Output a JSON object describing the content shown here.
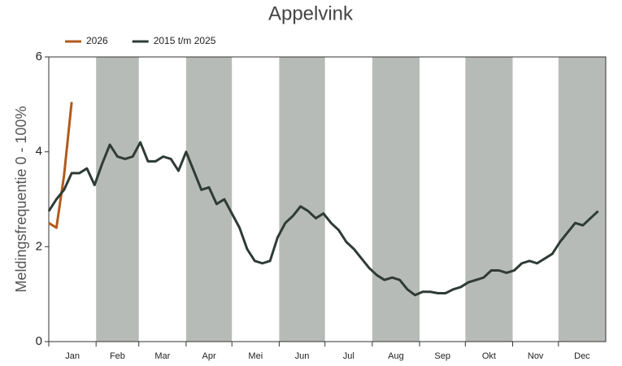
{
  "chart_data": {
    "type": "line",
    "title": "Appelvink",
    "y_label": "Meldingsfrequentie 0 - 100%",
    "x": [
      1,
      6,
      11,
      16,
      21,
      26,
      31,
      36,
      41,
      46,
      51,
      56,
      61,
      66,
      71,
      76,
      81,
      86,
      91,
      96,
      101,
      106,
      111,
      116,
      121,
      126,
      131,
      136,
      141,
      146,
      151,
      156,
      161,
      166,
      171,
      176,
      181,
      186,
      191,
      196,
      201,
      206,
      211,
      216,
      221,
      226,
      231,
      236,
      241,
      246,
      251,
      256,
      261,
      266,
      271,
      276,
      281,
      286,
      291,
      296,
      301,
      306,
      311,
      316,
      321,
      326,
      331,
      336,
      341,
      346,
      351,
      356,
      361
    ],
    "xlim": [
      1,
      366
    ],
    "xticks": [
      {
        "value": 1,
        "label": "Jan"
      },
      {
        "value": 32,
        "label": "Feb"
      },
      {
        "value": 60,
        "label": "Mar"
      },
      {
        "value": 91,
        "label": "Apr"
      },
      {
        "value": 121,
        "label": "Mei"
      },
      {
        "value": 152,
        "label": "Jun"
      },
      {
        "value": 182,
        "label": "Jul"
      },
      {
        "value": 213,
        "label": "Aug"
      },
      {
        "value": 244,
        "label": "Sep"
      },
      {
        "value": 274,
        "label": "Okt"
      },
      {
        "value": 305,
        "label": "Nov"
      },
      {
        "value": 335,
        "label": "Dec"
      }
    ],
    "shade_alternate": true,
    "shade_color": "#b7bbb7",
    "ylim": [
      0,
      6
    ],
    "yticks": [
      0,
      2,
      4,
      6
    ],
    "legend": "top-left",
    "series": [
      {
        "name": "2026",
        "color": "#b25a1c",
        "values": [
          2.5,
          2.4,
          3.5,
          5.05,
          null,
          null,
          null,
          null,
          null,
          null,
          null,
          null,
          null,
          null,
          null,
          null,
          null,
          null,
          null,
          null,
          null,
          null,
          null,
          null,
          null,
          null,
          null,
          null,
          null,
          null,
          null,
          null,
          null,
          null,
          null,
          null,
          null,
          null,
          null,
          null,
          null,
          null,
          null,
          null,
          null,
          null,
          null,
          null,
          null,
          null,
          null,
          null,
          null,
          null,
          null,
          null,
          null,
          null,
          null,
          null,
          null,
          null,
          null,
          null,
          null,
          null,
          null,
          null,
          null,
          null,
          null,
          null,
          null
        ]
      },
      {
        "name": "2015 t/m 2025",
        "color": "#2f3b35",
        "values": [
          2.75,
          3.0,
          3.2,
          3.55,
          3.55,
          3.65,
          3.3,
          3.75,
          4.15,
          3.9,
          3.85,
          3.9,
          4.2,
          3.8,
          3.8,
          3.9,
          3.85,
          3.6,
          4.0,
          3.6,
          3.2,
          3.25,
          2.9,
          3.0,
          2.7,
          2.4,
          1.95,
          1.7,
          1.65,
          1.7,
          2.2,
          2.5,
          2.65,
          2.85,
          2.75,
          2.6,
          2.7,
          2.5,
          2.35,
          2.1,
          1.95,
          1.75,
          1.55,
          1.4,
          1.3,
          1.35,
          1.3,
          1.1,
          0.98,
          1.05,
          1.05,
          1.02,
          1.02,
          1.1,
          1.15,
          1.25,
          1.3,
          1.35,
          1.5,
          1.5,
          1.45,
          1.5,
          1.65,
          1.7,
          1.65,
          1.75,
          1.85,
          2.1,
          2.3,
          2.5,
          2.45,
          2.6,
          2.75
        ]
      }
    ]
  }
}
